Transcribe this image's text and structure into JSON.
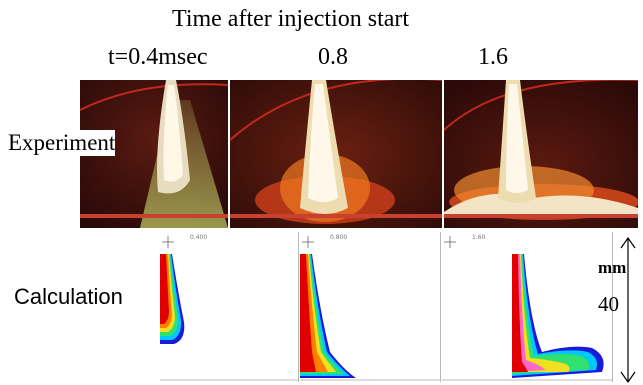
{
  "header": {
    "title": "Time after injection start",
    "times": [
      "t=0.4msec",
      "0.8",
      "1.6"
    ]
  },
  "rows": {
    "experiment_label": "Experiment",
    "calculation_label": "Calculation"
  },
  "scale": {
    "unit": "mm",
    "value": "40"
  },
  "sim_headers": [
    "0.400",
    "0.800",
    "1.60"
  ],
  "colors": {
    "spray_core": "#f2e8c8",
    "flame": "#e04a10",
    "background_dark": "#3a1010",
    "contour_outer": "#1a1adc",
    "contour_inner": "#e00000"
  }
}
